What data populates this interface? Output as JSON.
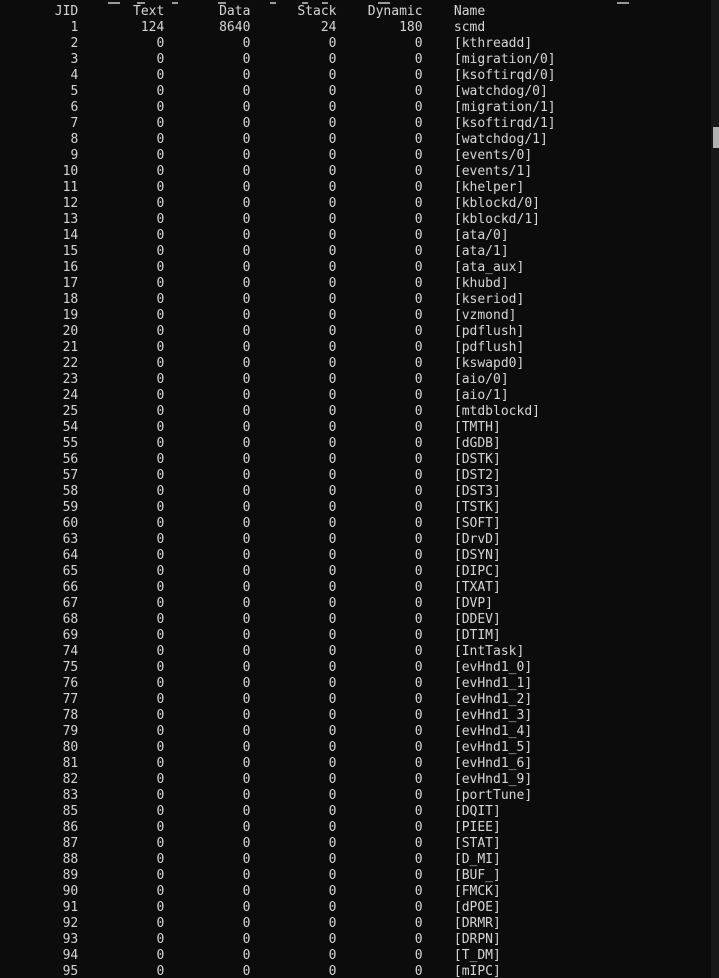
{
  "window": {
    "kind": "terminal-console",
    "description": "Console job list showing per-job memory usage"
  },
  "colors": {
    "background": "#0c0c0c",
    "text": "#d6d6d6",
    "scrollbar_track": "#181818",
    "scrollbar_thumb": "#b2b2b2"
  },
  "table": {
    "columns": [
      "JID",
      "Text",
      "Data",
      "Stack",
      "Dynamic",
      "Name"
    ],
    "rows": [
      [
        "1",
        "124",
        "8640",
        "24",
        "180",
        "scmd"
      ],
      [
        "2",
        "0",
        "0",
        "0",
        "0",
        "[kthreadd]"
      ],
      [
        "3",
        "0",
        "0",
        "0",
        "0",
        "[migration/0]"
      ],
      [
        "4",
        "0",
        "0",
        "0",
        "0",
        "[ksoftirqd/0]"
      ],
      [
        "5",
        "0",
        "0",
        "0",
        "0",
        "[watchdog/0]"
      ],
      [
        "6",
        "0",
        "0",
        "0",
        "0",
        "[migration/1]"
      ],
      [
        "7",
        "0",
        "0",
        "0",
        "0",
        "[ksoftirqd/1]"
      ],
      [
        "8",
        "0",
        "0",
        "0",
        "0",
        "[watchdog/1]"
      ],
      [
        "9",
        "0",
        "0",
        "0",
        "0",
        "[events/0]"
      ],
      [
        "10",
        "0",
        "0",
        "0",
        "0",
        "[events/1]"
      ],
      [
        "11",
        "0",
        "0",
        "0",
        "0",
        "[khelper]"
      ],
      [
        "12",
        "0",
        "0",
        "0",
        "0",
        "[kblockd/0]"
      ],
      [
        "13",
        "0",
        "0",
        "0",
        "0",
        "[kblockd/1]"
      ],
      [
        "14",
        "0",
        "0",
        "0",
        "0",
        "[ata/0]"
      ],
      [
        "15",
        "0",
        "0",
        "0",
        "0",
        "[ata/1]"
      ],
      [
        "16",
        "0",
        "0",
        "0",
        "0",
        "[ata_aux]"
      ],
      [
        "17",
        "0",
        "0",
        "0",
        "0",
        "[khubd]"
      ],
      [
        "18",
        "0",
        "0",
        "0",
        "0",
        "[kseriod]"
      ],
      [
        "19",
        "0",
        "0",
        "0",
        "0",
        "[vzmond]"
      ],
      [
        "20",
        "0",
        "0",
        "0",
        "0",
        "[pdflush]"
      ],
      [
        "21",
        "0",
        "0",
        "0",
        "0",
        "[pdflush]"
      ],
      [
        "22",
        "0",
        "0",
        "0",
        "0",
        "[kswapd0]"
      ],
      [
        "23",
        "0",
        "0",
        "0",
        "0",
        "[aio/0]"
      ],
      [
        "24",
        "0",
        "0",
        "0",
        "0",
        "[aio/1]"
      ],
      [
        "25",
        "0",
        "0",
        "0",
        "0",
        "[mtdblockd]"
      ],
      [
        "54",
        "0",
        "0",
        "0",
        "0",
        "[TMTH]"
      ],
      [
        "55",
        "0",
        "0",
        "0",
        "0",
        "[dGDB]"
      ],
      [
        "56",
        "0",
        "0",
        "0",
        "0",
        "[DSTK]"
      ],
      [
        "57",
        "0",
        "0",
        "0",
        "0",
        "[DST2]"
      ],
      [
        "58",
        "0",
        "0",
        "0",
        "0",
        "[DST3]"
      ],
      [
        "59",
        "0",
        "0",
        "0",
        "0",
        "[TSTK]"
      ],
      [
        "60",
        "0",
        "0",
        "0",
        "0",
        "[SOFT]"
      ],
      [
        "63",
        "0",
        "0",
        "0",
        "0",
        "[DrvD]"
      ],
      [
        "64",
        "0",
        "0",
        "0",
        "0",
        "[DSYN]"
      ],
      [
        "65",
        "0",
        "0",
        "0",
        "0",
        "[DIPC]"
      ],
      [
        "66",
        "0",
        "0",
        "0",
        "0",
        "[TXAT]"
      ],
      [
        "67",
        "0",
        "0",
        "0",
        "0",
        "[DVP]"
      ],
      [
        "68",
        "0",
        "0",
        "0",
        "0",
        "[DDEV]"
      ],
      [
        "69",
        "0",
        "0",
        "0",
        "0",
        "[DTIM]"
      ],
      [
        "74",
        "0",
        "0",
        "0",
        "0",
        "[IntTask]"
      ],
      [
        "75",
        "0",
        "0",
        "0",
        "0",
        "[evHnd1_0]"
      ],
      [
        "76",
        "0",
        "0",
        "0",
        "0",
        "[evHnd1_1]"
      ],
      [
        "77",
        "0",
        "0",
        "0",
        "0",
        "[evHnd1_2]"
      ],
      [
        "78",
        "0",
        "0",
        "0",
        "0",
        "[evHnd1_3]"
      ],
      [
        "79",
        "0",
        "0",
        "0",
        "0",
        "[evHnd1_4]"
      ],
      [
        "80",
        "0",
        "0",
        "0",
        "0",
        "[evHnd1_5]"
      ],
      [
        "81",
        "0",
        "0",
        "0",
        "0",
        "[evHnd1_6]"
      ],
      [
        "82",
        "0",
        "0",
        "0",
        "0",
        "[evHnd1_9]"
      ],
      [
        "83",
        "0",
        "0",
        "0",
        "0",
        "[portTune]"
      ],
      [
        "85",
        "0",
        "0",
        "0",
        "0",
        "[DQIT]"
      ],
      [
        "86",
        "0",
        "0",
        "0",
        "0",
        "[PIEE]"
      ],
      [
        "87",
        "0",
        "0",
        "0",
        "0",
        "[STAT]"
      ],
      [
        "88",
        "0",
        "0",
        "0",
        "0",
        "[D_MI]"
      ],
      [
        "89",
        "0",
        "0",
        "0",
        "0",
        "[BUF_]"
      ],
      [
        "90",
        "0",
        "0",
        "0",
        "0",
        "[FMCK]"
      ],
      [
        "91",
        "0",
        "0",
        "0",
        "0",
        "[dPOE]"
      ],
      [
        "92",
        "0",
        "0",
        "0",
        "0",
        "[DRMR]"
      ],
      [
        "93",
        "0",
        "0",
        "0",
        "0",
        "[DRPN]"
      ],
      [
        "94",
        "0",
        "0",
        "0",
        "0",
        "[T_DM]"
      ],
      [
        "95",
        "0",
        "0",
        "0",
        "0",
        "[mIPC]"
      ]
    ]
  }
}
